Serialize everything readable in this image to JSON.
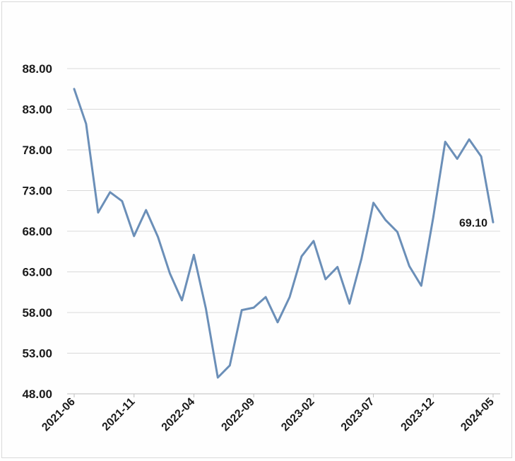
{
  "chart_data": {
    "type": "line",
    "x_tick_labels": [
      "2021-06",
      "2021-11",
      "2022-04",
      "2022-09",
      "2023-02",
      "2023-07",
      "2023-12",
      "2024-05"
    ],
    "y_tick_labels": [
      "48.00",
      "53.00",
      "58.00",
      "63.00",
      "68.00",
      "73.00",
      "78.00",
      "83.00",
      "88.00"
    ],
    "ylim": [
      48,
      88
    ],
    "grid": "horizontal",
    "legend": "none",
    "line_color": "#6b8fb8",
    "series": [
      {
        "x": [
          "2021-06",
          "2021-07",
          "2021-08",
          "2021-09",
          "2021-10",
          "2021-11",
          "2021-12",
          "2022-01",
          "2022-02",
          "2022-03",
          "2022-04",
          "2022-05",
          "2022-06",
          "2022-07",
          "2022-08",
          "2022-09",
          "2022-10",
          "2022-11",
          "2022-12",
          "2023-01",
          "2023-02",
          "2023-03",
          "2023-04",
          "2023-05",
          "2023-06",
          "2023-07",
          "2023-08",
          "2023-09",
          "2023-10",
          "2023-11",
          "2023-12",
          "2024-01",
          "2024-02",
          "2024-03",
          "2024-04",
          "2024-05"
        ],
        "values": [
          85.5,
          81.2,
          70.3,
          72.8,
          71.7,
          67.4,
          70.6,
          67.3,
          62.8,
          59.5,
          65.1,
          58.5,
          50.0,
          51.5,
          58.3,
          58.6,
          59.9,
          56.8,
          59.9,
          64.9,
          66.8,
          62.1,
          63.6,
          59.1,
          64.6,
          71.5,
          69.4,
          67.9,
          63.7,
          61.3,
          69.7,
          79.0,
          76.9,
          79.3,
          77.2,
          69.1
        ]
      }
    ],
    "data_labels": [
      {
        "x": "2024-05",
        "text": "69.10"
      }
    ]
  }
}
